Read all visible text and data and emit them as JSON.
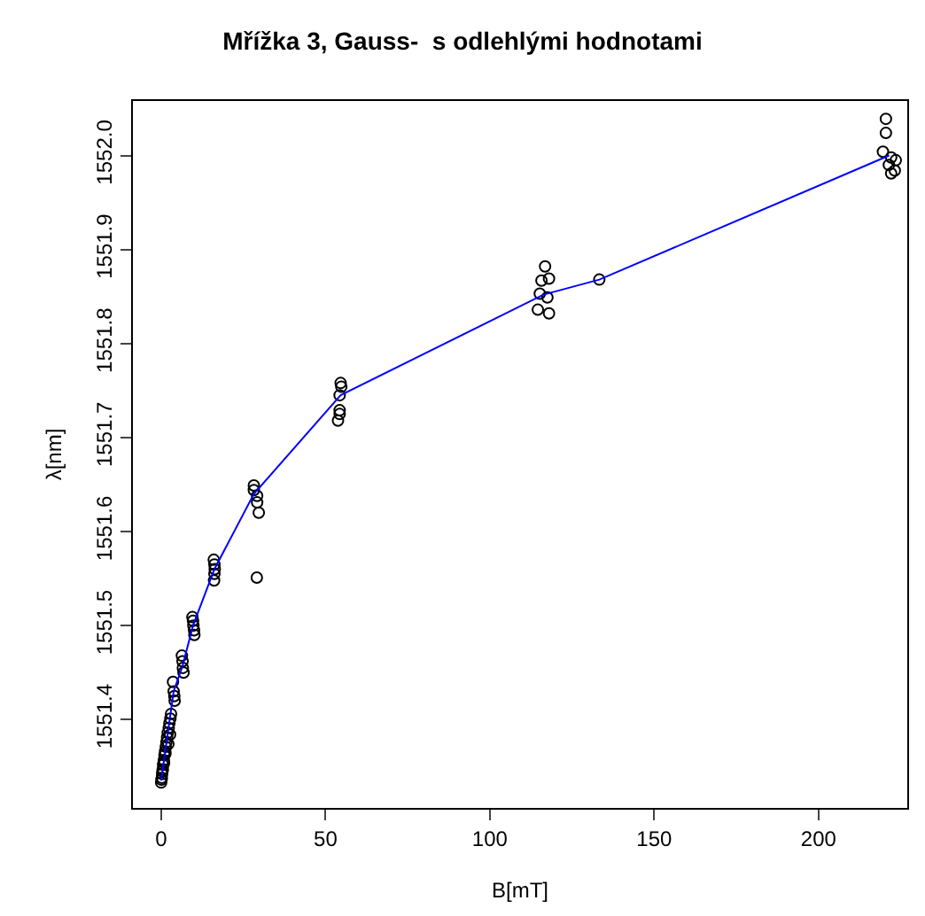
{
  "chart_data": {
    "type": "scatter",
    "title": "Mřížka 3, Gauss-  s odlehlými hodnotami",
    "xlabel": "B[mT]",
    "ylabel": "λ[nm]",
    "xlim": [
      -8.6,
      227
    ],
    "xticks": [
      0,
      50,
      100,
      150,
      200
    ],
    "ylim": [
      1551.306,
      1552.058
    ],
    "yticks": [
      1551.4,
      1551.5,
      1551.6,
      1551.7,
      1551.8,
      1551.9,
      {
        "value": 1552.0,
        "label": "1552.0"
      }
    ],
    "series": [
      {
        "marker": "circle",
        "color": "#000000",
        "x": [
          0.0,
          0.2,
          0.3,
          0.5,
          0.6,
          0.8,
          1.0,
          1.2,
          1.4,
          1.6,
          1.8,
          2.0,
          2.3,
          2.5,
          2.8,
          3.0,
          0.1,
          0.4,
          0.9,
          1.3,
          2.2,
          2.7,
          3.6,
          3.8,
          4.0,
          4.1,
          6.3,
          6.5,
          6.6,
          6.8,
          9.5,
          9.7,
          9.8,
          10.0,
          10.1,
          16.0,
          16.2,
          16.3,
          16.2,
          16.1,
          28.2,
          28.2,
          29.2,
          29.2,
          29.7,
          29.1,
          54.6,
          54.8,
          54.3,
          54.3,
          54.3,
          53.8,
          116.8,
          115.7,
          118.0,
          115.2,
          117.5,
          114.6,
          118.0,
          133.3,
          220.5,
          220.5,
          219.6,
          222.1,
          223.5,
          221.4,
          223.2,
          222.1
        ],
        "values": [
          1551.333,
          1551.338,
          1551.342,
          1551.347,
          1551.352,
          1551.357,
          1551.362,
          1551.366,
          1551.371,
          1551.376,
          1551.381,
          1551.386,
          1551.391,
          1551.396,
          1551.401,
          1551.406,
          1551.336,
          1551.345,
          1551.354,
          1551.364,
          1551.374,
          1551.384,
          1551.44,
          1551.43,
          1551.425,
          1551.42,
          1551.468,
          1551.462,
          1551.455,
          1551.45,
          1551.509,
          1551.505,
          1551.5,
          1551.495,
          1551.49,
          1551.57,
          1551.565,
          1551.56,
          1551.555,
          1551.548,
          1551.649,
          1551.644,
          1551.638,
          1551.631,
          1551.62,
          1551.551,
          1551.758,
          1551.754,
          1551.745,
          1551.729,
          1551.725,
          1551.718,
          1551.882,
          1551.867,
          1551.869,
          1551.853,
          1551.849,
          1551.836,
          1551.832,
          1551.868,
          1552.039,
          1552.024,
          1552.004,
          1551.998,
          1551.995,
          1551.99,
          1551.984,
          1551.981
        ]
      },
      {
        "type": "line",
        "marker": "none",
        "color": "#0000ff",
        "x": [
          0.0,
          1.0,
          2.0,
          3.8,
          6.5,
          9.7,
          16.2,
          28.2,
          54.6,
          116.3,
          133.3,
          221.5
        ],
        "values": [
          1551.335,
          1551.36,
          1551.385,
          1551.43,
          1551.457,
          1551.5,
          1551.56,
          1551.64,
          1551.745,
          1551.852,
          1551.868,
          1552.0
        ]
      }
    ]
  }
}
